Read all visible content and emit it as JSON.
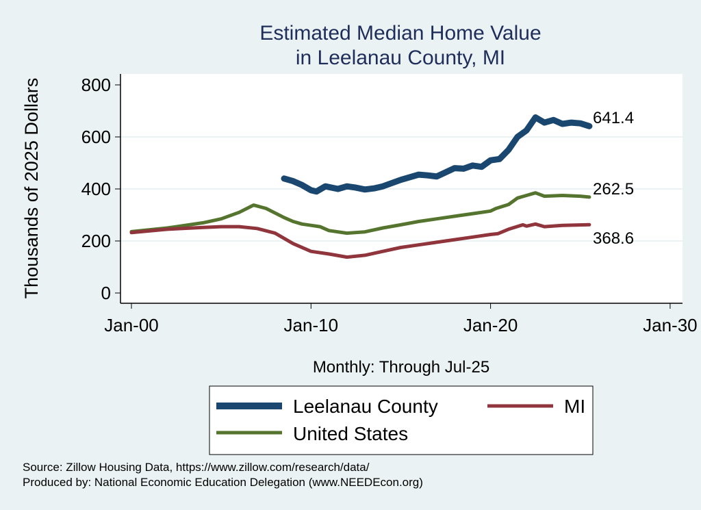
{
  "chart_data": {
    "type": "line",
    "title": [
      "Estimated Median Home Value",
      "in Leelanau County, MI"
    ],
    "xlabel": "Monthly: Through Jul-25",
    "ylabel": "Thousands of 2025 Dollars",
    "xlim": [
      2000,
      2030
    ],
    "ylim": [
      0,
      800
    ],
    "xticks": [
      {
        "v": 2000,
        "label": "Jan-00"
      },
      {
        "v": 2010,
        "label": "Jan-10"
      },
      {
        "v": 2020,
        "label": "Jan-20"
      },
      {
        "v": 2030,
        "label": "Jan-30"
      }
    ],
    "yticks": [
      0,
      200,
      400,
      600,
      800
    ],
    "grid": true,
    "legend_position": "bottom",
    "series": [
      {
        "name": "Leelanau County",
        "color": "#1a476f",
        "end_label": "641.4",
        "x": [
          2008.5,
          2009,
          2009.5,
          2010,
          2010.3,
          2010.8,
          2011.5,
          2012,
          2012.5,
          2013,
          2013.5,
          2014,
          2015,
          2016,
          2016.5,
          2017,
          2018,
          2018.5,
          2019,
          2019.5,
          2020,
          2020.5,
          2021,
          2021.5,
          2022,
          2022.5,
          2023,
          2023.5,
          2024,
          2024.5,
          2025,
          2025.5
        ],
        "y": [
          440,
          430,
          415,
          395,
          390,
          410,
          400,
          410,
          405,
          398,
          402,
          410,
          435,
          455,
          452,
          448,
          480,
          478,
          490,
          485,
          510,
          515,
          550,
          600,
          625,
          675,
          655,
          665,
          650,
          655,
          652,
          641.4
        ]
      },
      {
        "name": "MI",
        "color": "#90353b",
        "end_label": "262.5",
        "x": [
          2000,
          2002,
          2004,
          2005,
          2006,
          2007,
          2008,
          2009,
          2010,
          2011,
          2012,
          2013,
          2014,
          2015,
          2016,
          2017,
          2018,
          2019,
          2020,
          2020.4,
          2021,
          2021.8,
          2022,
          2022.5,
          2023,
          2024,
          2025.5
        ],
        "y": [
          232,
          245,
          252,
          255,
          255,
          248,
          230,
          190,
          160,
          150,
          138,
          145,
          160,
          175,
          185,
          195,
          205,
          215,
          225,
          228,
          245,
          262,
          257,
          265,
          255,
          260,
          262.5
        ]
      },
      {
        "name": "United States",
        "color": "#55752f",
        "end_label": "368.6",
        "x": [
          2000,
          2002,
          2004,
          2005,
          2006,
          2006.8,
          2007.5,
          2008.5,
          2009,
          2009.5,
          2010,
          2010.5,
          2011,
          2012,
          2013,
          2014,
          2015,
          2016,
          2017,
          2018,
          2019,
          2020,
          2020.3,
          2021,
          2021.5,
          2022,
          2022.5,
          2023,
          2024,
          2025,
          2025.5
        ],
        "y": [
          236,
          250,
          270,
          285,
          310,
          338,
          325,
          290,
          275,
          265,
          260,
          255,
          240,
          230,
          235,
          250,
          262,
          275,
          285,
          295,
          305,
          315,
          325,
          340,
          365,
          375,
          385,
          372,
          375,
          372,
          368.6
        ]
      }
    ],
    "notes": [
      "Source: Zillow Housing Data, https://www.zillow.com/research/data/",
      "Produced by: National Economic Education Delegation (www.NEEDEcon.org)"
    ]
  }
}
